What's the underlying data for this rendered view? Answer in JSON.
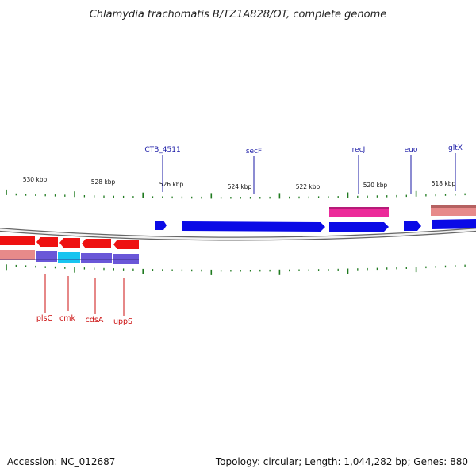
{
  "title": "Chlamydia trachomatis B/TZ1A828/OT, complete genome",
  "footer": {
    "accession": "Accession: NC_012687",
    "summary": "Topology: circular; Length: 1,044,282 bp; Genes: 880"
  },
  "colors": {
    "forward_cds": "#0a0ae6",
    "reverse_cds": "#ee1111",
    "feature_pink": "#ec2a9a",
    "feature_salmon": "#e78a8a",
    "feature_purple": "#6a57d8",
    "feature_cyan": "#18c4f0",
    "tick": "#1f7a1f",
    "top_label": "#1a1aa6",
    "bottom_label": "#cc1111"
  },
  "kbp_labels": [
    "530 kbp",
    "528 kbp",
    "526 kbp",
    "524 kbp",
    "522 kbp",
    "520 kbp",
    "518 kbp"
  ],
  "top_genes": [
    "CTB_4511",
    "secF",
    "recJ",
    "euo",
    "gltX"
  ],
  "bottom_genes": [
    "plsC",
    "cmk",
    "cdsA",
    "uppS"
  ]
}
